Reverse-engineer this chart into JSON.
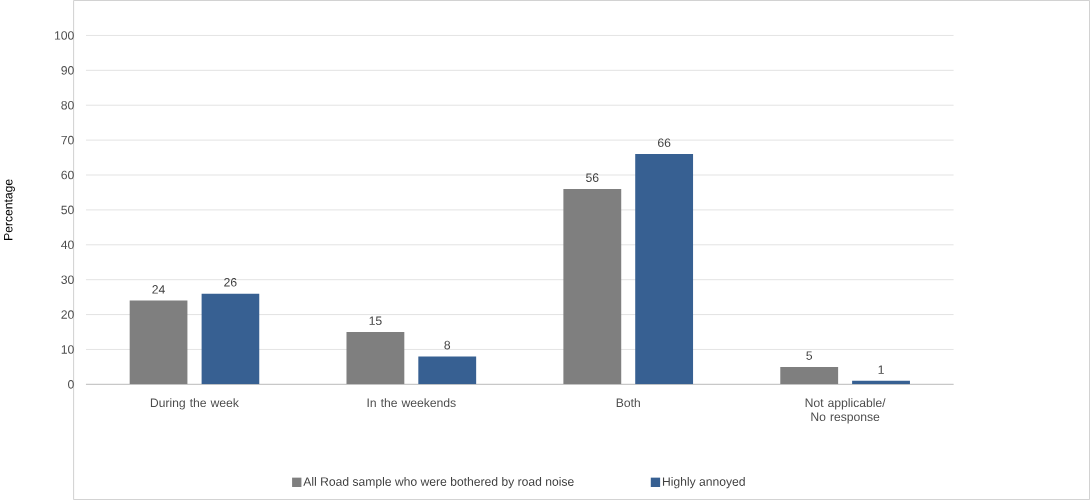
{
  "chart_data": {
    "type": "bar",
    "ylabel": "Percentage",
    "categories": [
      "During the week",
      "In the weekends",
      "Both",
      "Not applicable/ No response"
    ],
    "series": [
      {
        "name": "All Road sample who were bothered by road noise",
        "color": "#7f7f7f",
        "values": [
          24,
          15,
          56,
          5
        ]
      },
      {
        "name": "Highly annoyed",
        "color": "#376092",
        "values": [
          26,
          8,
          66,
          1
        ]
      }
    ],
    "ylim": [
      0,
      100
    ],
    "yticks": [
      0,
      10,
      20,
      30,
      40,
      50,
      60,
      70,
      80,
      90,
      100
    ],
    "grid": "y",
    "legend": "bottom",
    "data_labels": true
  }
}
